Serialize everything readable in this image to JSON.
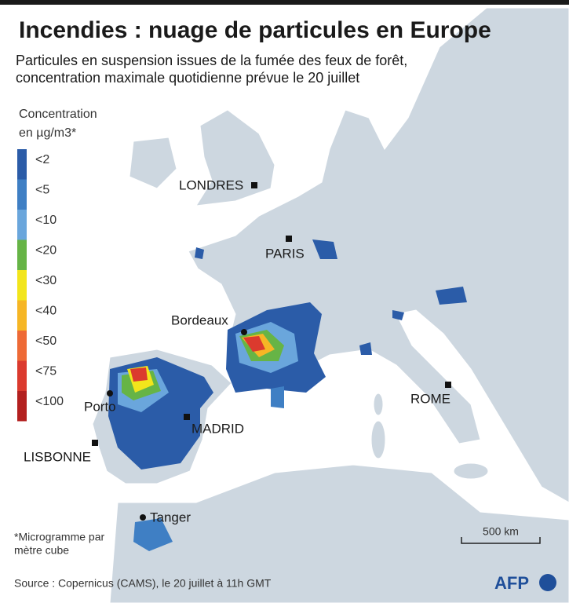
{
  "header": {
    "title": "Incendies : nuage de particules en Europe",
    "subtitle": [
      "Particules en suspension issues de la fumée des feux de forêt,",
      "concentration maximale quotidienne prévue le 20 juillet"
    ]
  },
  "legend": {
    "title": [
      "Concentration",
      "en µg/m3*"
    ],
    "items": [
      {
        "label": "<2",
        "color": "#2b5ca8"
      },
      {
        "label": "<5",
        "color": "#3f7fc4"
      },
      {
        "label": "<10",
        "color": "#6aa6dc"
      },
      {
        "label": "<20",
        "color": "#66b446"
      },
      {
        "label": "<30",
        "color": "#f2e51c"
      },
      {
        "label": "<40",
        "color": "#f6b625"
      },
      {
        "label": "<50",
        "color": "#ee6a36"
      },
      {
        "label": "<75",
        "color": "#db3a2e"
      },
      {
        "label": "<100",
        "color": "#b3201f"
      }
    ]
  },
  "cities": [
    {
      "label": "LONDRES"
    },
    {
      "label": "PARIS"
    },
    {
      "label": "Bordeaux"
    },
    {
      "label": "Porto"
    },
    {
      "label": "MADRID"
    },
    {
      "label": "LISBONNE"
    },
    {
      "label": "ROME"
    },
    {
      "label": "Tanger"
    }
  ],
  "scale": {
    "label": "500 km"
  },
  "footnote": [
    "*Microgramme par",
    "mètre cube"
  ],
  "source": "Source : Copernicus (CAMS),  le 20 juillet à 11h GMT",
  "logo": "AFP"
}
